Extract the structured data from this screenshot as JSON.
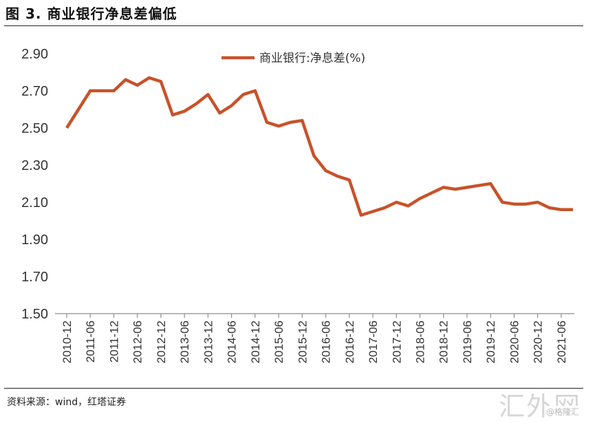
{
  "header": {
    "title": "图 3. 商业银行净息差偏低"
  },
  "footer": {
    "source": "资料来源：wind，红塔证券"
  },
  "watermark": {
    "text": "汇外网",
    "sub": "@格隆汇"
  },
  "chart_data": {
    "type": "line",
    "title": "",
    "xlabel": "",
    "ylabel": "",
    "ylim": [
      1.5,
      2.9
    ],
    "yticks": [
      "2.90",
      "2.70",
      "2.50",
      "2.30",
      "2.10",
      "1.90",
      "1.70",
      "1.50"
    ],
    "xtick_labels": [
      "2010-12",
      "2011-06",
      "2011-12",
      "2012-06",
      "2012-12",
      "2013-06",
      "2013-12",
      "2014-06",
      "2014-12",
      "2015-06",
      "2015-12",
      "2016-06",
      "2016-12",
      "2017-06",
      "2017-12",
      "2018-06",
      "2018-12",
      "2019-06",
      "2019-12",
      "2020-06",
      "2020-12",
      "2021-06"
    ],
    "legend_position": "top-center",
    "grid": false,
    "color": "#C8522A",
    "series": [
      {
        "name": "商业银行:净息差(%)",
        "x": [
          "2010-12",
          "2011-03",
          "2011-06",
          "2011-09",
          "2011-12",
          "2012-03",
          "2012-06",
          "2012-09",
          "2012-12",
          "2013-03",
          "2013-06",
          "2013-09",
          "2013-12",
          "2014-03",
          "2014-06",
          "2014-09",
          "2014-12",
          "2015-03",
          "2015-06",
          "2015-09",
          "2015-12",
          "2016-03",
          "2016-06",
          "2016-09",
          "2016-12",
          "2017-03",
          "2017-06",
          "2017-09",
          "2017-12",
          "2018-03",
          "2018-06",
          "2018-09",
          "2018-12",
          "2019-03",
          "2019-06",
          "2019-09",
          "2019-12",
          "2020-03",
          "2020-06",
          "2020-09",
          "2020-12",
          "2021-03",
          "2021-06",
          "2021-09"
        ],
        "values": [
          2.5,
          2.6,
          2.7,
          2.7,
          2.7,
          2.76,
          2.73,
          2.77,
          2.75,
          2.57,
          2.59,
          2.63,
          2.68,
          2.58,
          2.62,
          2.68,
          2.7,
          2.53,
          2.51,
          2.53,
          2.54,
          2.35,
          2.27,
          2.24,
          2.22,
          2.03,
          2.05,
          2.07,
          2.1,
          2.08,
          2.12,
          2.15,
          2.18,
          2.17,
          2.18,
          2.19,
          2.2,
          2.1,
          2.09,
          2.09,
          2.1,
          2.07,
          2.06,
          2.06
        ]
      }
    ]
  }
}
